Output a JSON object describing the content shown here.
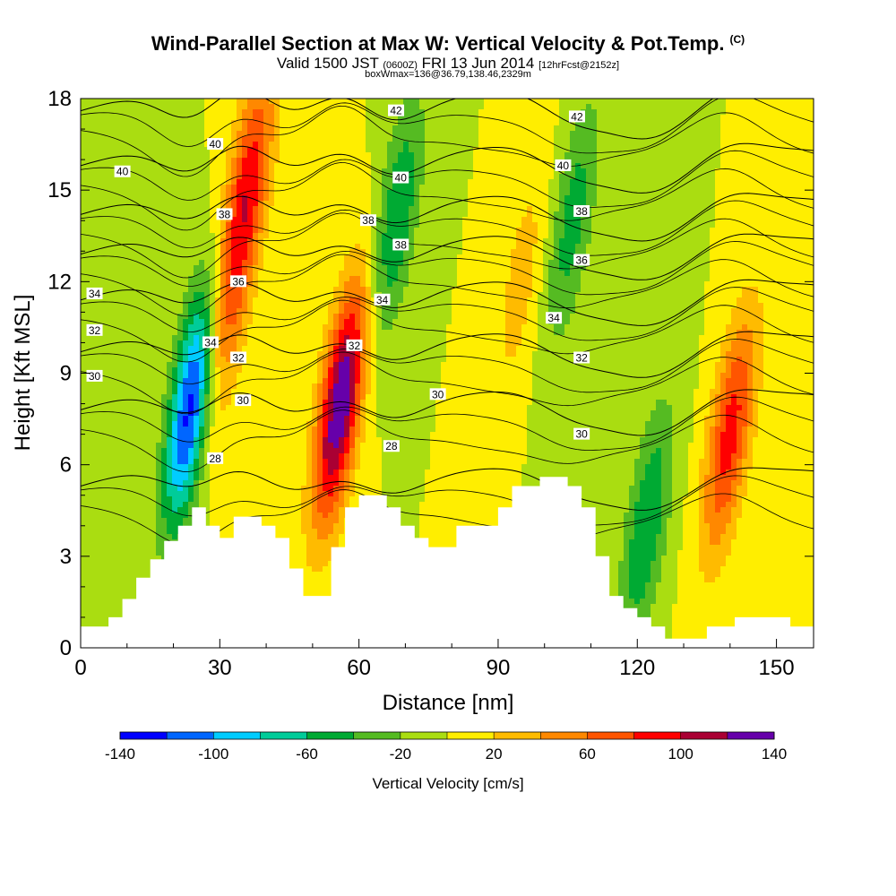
{
  "title": {
    "main": "Wind-Parallel Section at Max W: Vertical Velocity & Pot.Temp.",
    "copyright": "(C)",
    "valid_prefix": "Valid 1500 JST",
    "valid_utc": "(0600Z)",
    "valid_date": "FRI 13 Jun 2014",
    "forecast": "[12hrFcst@2152z]",
    "box": "boxWmax=136@36.79,138.46,2329m"
  },
  "chart_data": {
    "type": "heatmap",
    "xlabel": "Distance [nm]",
    "ylabel": "Height [Kft MSL]",
    "xlim": [
      0,
      158
    ],
    "ylim": [
      0,
      18
    ],
    "x_ticks": [
      0,
      30,
      60,
      90,
      120,
      150
    ],
    "y_ticks": [
      0,
      3,
      6,
      9,
      12,
      15,
      18
    ],
    "colorbar": {
      "label": "Vertical Velocity [cm/s]",
      "tick_labels": [
        "-140",
        "-100",
        "-60",
        "-20",
        "20",
        "60",
        "100",
        "140"
      ],
      "bins": [
        -140,
        -120,
        -100,
        -80,
        -60,
        -40,
        -20,
        0,
        20,
        40,
        60,
        80,
        100,
        120,
        140
      ],
      "colors": [
        "#0000ff",
        "#0066ff",
        "#00ccff",
        "#00cc99",
        "#00aa33",
        "#55bb22",
        "#aadd11",
        "#ffee00",
        "#ffbb00",
        "#ff8800",
        "#ff5500",
        "#ff0000",
        "#aa0033",
        "#6600aa"
      ]
    },
    "features": [
      {
        "x": 24,
        "y": 8,
        "value": -140
      },
      {
        "x": 30,
        "y": 10,
        "value": 60
      },
      {
        "x": 36,
        "y": 15,
        "value": 90
      },
      {
        "x": 56,
        "y": 8,
        "value": 140
      },
      {
        "x": 68,
        "y": 14,
        "value": -60
      },
      {
        "x": 95,
        "y": 12,
        "value": 30
      },
      {
        "x": 106,
        "y": 14,
        "value": -50
      },
      {
        "x": 122,
        "y": 4,
        "value": -60
      },
      {
        "x": 140,
        "y": 7,
        "value": 90
      }
    ],
    "terrain": [
      {
        "x": 0,
        "height": 0.7
      },
      {
        "x": 3,
        "height": 0.7
      },
      {
        "x": 6,
        "height": 1.0
      },
      {
        "x": 9,
        "height": 1.6
      },
      {
        "x": 12,
        "height": 2.3
      },
      {
        "x": 15,
        "height": 2.9
      },
      {
        "x": 18,
        "height": 3.5
      },
      {
        "x": 21,
        "height": 4.0
      },
      {
        "x": 24,
        "height": 4.6
      },
      {
        "x": 27,
        "height": 4.0
      },
      {
        "x": 30,
        "height": 3.6
      },
      {
        "x": 33,
        "height": 4.3
      },
      {
        "x": 36,
        "height": 4.3
      },
      {
        "x": 39,
        "height": 4.0
      },
      {
        "x": 42,
        "height": 3.6
      },
      {
        "x": 45,
        "height": 2.6
      },
      {
        "x": 48,
        "height": 1.7
      },
      {
        "x": 51,
        "height": 1.7
      },
      {
        "x": 54,
        "height": 3.3
      },
      {
        "x": 57,
        "height": 4.6
      },
      {
        "x": 60,
        "height": 5.0
      },
      {
        "x": 63,
        "height": 5.0
      },
      {
        "x": 66,
        "height": 4.6
      },
      {
        "x": 69,
        "height": 4.0
      },
      {
        "x": 72,
        "height": 3.6
      },
      {
        "x": 75,
        "height": 3.3
      },
      {
        "x": 78,
        "height": 3.3
      },
      {
        "x": 81,
        "height": 4.0
      },
      {
        "x": 84,
        "height": 4.0
      },
      {
        "x": 87,
        "height": 4.0
      },
      {
        "x": 90,
        "height": 4.6
      },
      {
        "x": 93,
        "height": 5.3
      },
      {
        "x": 96,
        "height": 5.3
      },
      {
        "x": 99,
        "height": 5.6
      },
      {
        "x": 102,
        "height": 5.6
      },
      {
        "x": 105,
        "height": 5.3
      },
      {
        "x": 108,
        "height": 4.6
      },
      {
        "x": 111,
        "height": 3.0
      },
      {
        "x": 114,
        "height": 1.7
      },
      {
        "x": 117,
        "height": 1.3
      },
      {
        "x": 120,
        "height": 1.0
      },
      {
        "x": 123,
        "height": 0.7
      },
      {
        "x": 126,
        "height": 0.3
      },
      {
        "x": 129,
        "height": 0.3
      },
      {
        "x": 132,
        "height": 0.3
      },
      {
        "x": 135,
        "height": 0.7
      },
      {
        "x": 138,
        "height": 0.7
      },
      {
        "x": 141,
        "height": 1.0
      },
      {
        "x": 144,
        "height": 1.0
      },
      {
        "x": 147,
        "height": 1.0
      },
      {
        "x": 150,
        "height": 1.0
      },
      {
        "x": 153,
        "height": 0.7
      },
      {
        "x": 156,
        "height": 0.7
      },
      {
        "x": 158,
        "height": 0.7
      }
    ],
    "isentropes": [
      {
        "theta": 28,
        "base": 5.3,
        "amp": 1.1
      },
      {
        "theta": 30,
        "base": 7.8,
        "amp": 1.3
      },
      {
        "theta": 32,
        "base": 9.7,
        "amp": 1.3
      },
      {
        "theta": 34,
        "base": 11.4,
        "amp": 1.3
      },
      {
        "theta": 36,
        "base": 12.9,
        "amp": 1.3
      },
      {
        "theta": 38,
        "base": 14.2,
        "amp": 1.4
      },
      {
        "theta": 40,
        "base": 15.8,
        "amp": 1.5
      },
      {
        "theta": 42,
        "base": 17.6,
        "amp": 1.6
      }
    ],
    "contour_labels": [
      {
        "text": "42",
        "x": 68,
        "y": 17.6
      },
      {
        "text": "42",
        "x": 107,
        "y": 17.4
      },
      {
        "text": "40",
        "x": 9,
        "y": 15.6
      },
      {
        "text": "40",
        "x": 29,
        "y": 16.5
      },
      {
        "text": "40",
        "x": 69,
        "y": 15.4
      },
      {
        "text": "40",
        "x": 104,
        "y": 15.8
      },
      {
        "text": "38",
        "x": 31,
        "y": 14.2
      },
      {
        "text": "38",
        "x": 62,
        "y": 14.0
      },
      {
        "text": "38",
        "x": 69,
        "y": 13.2
      },
      {
        "text": "38",
        "x": 108,
        "y": 14.3
      },
      {
        "text": "36",
        "x": 34,
        "y": 12.0
      },
      {
        "text": "36",
        "x": 108,
        "y": 12.7
      },
      {
        "text": "34",
        "x": 3,
        "y": 11.6
      },
      {
        "text": "34",
        "x": 65,
        "y": 11.4
      },
      {
        "text": "34",
        "x": 102,
        "y": 10.8
      },
      {
        "text": "34",
        "x": 28,
        "y": 10.0
      },
      {
        "text": "32",
        "x": 3,
        "y": 10.4
      },
      {
        "text": "32",
        "x": 34,
        "y": 9.5
      },
      {
        "text": "32",
        "x": 59,
        "y": 9.9
      },
      {
        "text": "32",
        "x": 108,
        "y": 9.5
      },
      {
        "text": "30",
        "x": 3,
        "y": 8.9
      },
      {
        "text": "30",
        "x": 35,
        "y": 8.1
      },
      {
        "text": "30",
        "x": 77,
        "y": 8.3
      },
      {
        "text": "30",
        "x": 108,
        "y": 7.0
      },
      {
        "text": "28",
        "x": 29,
        "y": 6.2
      },
      {
        "text": "28",
        "x": 67,
        "y": 6.6
      }
    ]
  }
}
